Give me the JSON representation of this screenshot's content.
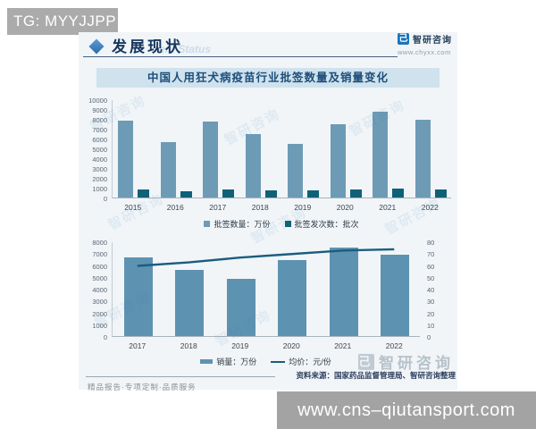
{
  "overlay": {
    "tg_label": "TG: MYYJJPP",
    "site_label": "www.cns–qiutansport.com"
  },
  "header": {
    "title": "发展现状",
    "watermark_en": "ent Status",
    "brand": {
      "name": "智研咨询",
      "url": "www.chyxx.com"
    }
  },
  "icons": {
    "brand_logo_glyph": "己"
  },
  "chart_title": "中国人用狂犬病疫苗行业批签数量及销量变化",
  "chart_data": [
    {
      "type": "bar",
      "categories": [
        "2015",
        "2016",
        "2017",
        "2018",
        "2019",
        "2020",
        "2021",
        "2022"
      ],
      "series": [
        {
          "name": "批签数量：万份",
          "kind": "bar",
          "color": "#6d9bb5",
          "values": [
            7800,
            5600,
            7700,
            6500,
            5450,
            7500,
            8700,
            7900
          ]
        },
        {
          "name": "批签发次数：批次",
          "kind": "bar",
          "color": "#0e6177",
          "values": [
            780,
            620,
            780,
            730,
            700,
            840,
            900,
            840
          ]
        }
      ],
      "ylim": [
        0,
        10000
      ],
      "ytick_step": 1000,
      "grid": false,
      "legend_position": "bottom"
    },
    {
      "type": "bar+line",
      "categories": [
        "2017",
        "2018",
        "2019",
        "2020",
        "2021",
        "2022"
      ],
      "series": [
        {
          "name": "销量：万份",
          "kind": "bar",
          "axis": "left",
          "color": "#5e92b1",
          "values": [
            6650,
            5550,
            4800,
            6450,
            7450,
            6900
          ]
        },
        {
          "name": "均价：元/份",
          "kind": "line",
          "axis": "right",
          "color": "#1b5d7e",
          "values": [
            60,
            63,
            67,
            70,
            73,
            74
          ]
        }
      ],
      "ylim_left": [
        0,
        8000
      ],
      "ytick_step_left": 1000,
      "ylim_right": [
        0,
        80
      ],
      "ytick_step_right": 10,
      "grid": false,
      "legend_position": "bottom"
    }
  ],
  "footer": {
    "source": "资料来源：国家药品监督管理局、智研咨询整理",
    "tagline": "精品报告·专项定制·品质服务",
    "watermark_brand": "智研咨询"
  },
  "colors": {
    "bar_light": "#6d9bb5",
    "bar_dark": "#0e6177",
    "bar_sales": "#5e92b1",
    "price_line": "#1b5d7e",
    "title_band_bg": "#cfe2ee",
    "title_band_text": "#1e4e79",
    "header_text": "#16375e",
    "badge_gray": "#ababab"
  }
}
